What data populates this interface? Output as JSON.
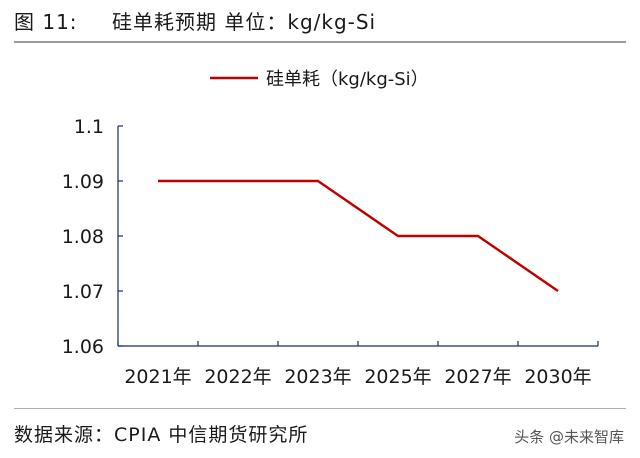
{
  "header": {
    "figure_label": "图 11:",
    "title": "硅单耗预期 单位：kg/kg-Si"
  },
  "footer": {
    "source": "数据来源：CPIA 中信期货研究所",
    "watermark": "头条 @未来智库"
  },
  "colors": {
    "series_line": "#c00000",
    "axis": "#1a2a6c"
  },
  "chart_data": {
    "type": "line",
    "title": "",
    "xlabel": "",
    "ylabel": "",
    "categories": [
      "2021年",
      "2022年",
      "2023年",
      "2025年",
      "2027年",
      "2030年"
    ],
    "series": [
      {
        "name": "硅单耗（kg/kg-Si）",
        "values": [
          1.09,
          1.09,
          1.09,
          1.08,
          1.08,
          1.07
        ]
      }
    ],
    "ylim": [
      1.06,
      1.1
    ],
    "yticks": [
      1.06,
      1.07,
      1.08,
      1.09,
      1.1
    ],
    "ytick_labels": [
      "1.06",
      "1.07",
      "1.08",
      "1.09",
      "1.1"
    ],
    "grid": false,
    "legend_position": "top-center"
  }
}
